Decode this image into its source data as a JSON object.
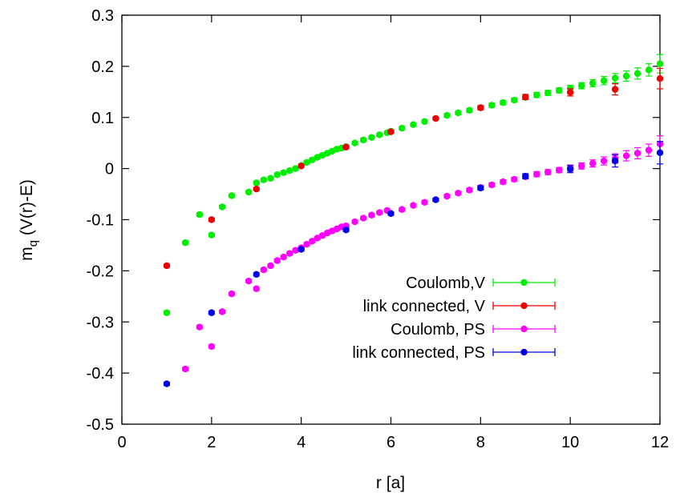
{
  "chart_data": {
    "type": "scatter",
    "title": "",
    "xlabel": "r [a]",
    "ylabel_main": "m",
    "ylabel_sub": "q",
    "ylabel_rest": " (V(r)-E)",
    "xlim": [
      0,
      12
    ],
    "ylim": [
      -0.5,
      0.3
    ],
    "xticks": [
      0,
      2,
      4,
      6,
      8,
      10,
      12
    ],
    "xtick_labels": [
      "0",
      "2",
      "4",
      "6",
      "8",
      "10",
      "12"
    ],
    "yticks": [
      -0.5,
      -0.4,
      -0.3,
      -0.2,
      -0.1,
      0,
      0.1,
      0.2,
      0.3
    ],
    "ytick_labels": [
      "-0.5",
      "-0.4",
      "-0.3",
      "-0.2",
      "-0.1",
      "0",
      "0.1",
      "0.2",
      "0.3"
    ],
    "grid": false,
    "legend_position": "center-right",
    "series": [
      {
        "name": "Coulomb,V",
        "color": "#00ee00",
        "marker": "circle",
        "x": [
          1.0,
          1.414,
          1.732,
          2.0,
          2.236,
          2.449,
          2.828,
          3.0,
          3.162,
          3.317,
          3.464,
          3.606,
          3.742,
          3.873,
          4.0,
          4.123,
          4.243,
          4.359,
          4.472,
          4.583,
          4.69,
          4.796,
          4.899,
          5.0,
          5.196,
          5.385,
          5.568,
          5.745,
          5.916,
          6.0,
          6.245,
          6.5,
          6.75,
          7.0,
          7.25,
          7.5,
          7.75,
          8.0,
          8.25,
          8.5,
          8.75,
          9.0,
          9.25,
          9.5,
          9.75,
          10.0,
          10.25,
          10.5,
          10.75,
          11.0,
          11.25,
          11.5,
          11.75,
          12.0
        ],
        "y": [
          -0.282,
          -0.145,
          -0.09,
          -0.13,
          -0.075,
          -0.053,
          -0.046,
          -0.028,
          -0.022,
          -0.019,
          -0.012,
          -0.008,
          -0.004,
          0.0,
          0.006,
          0.012,
          0.017,
          0.022,
          0.026,
          0.03,
          0.034,
          0.038,
          0.04,
          0.043,
          0.05,
          0.056,
          0.061,
          0.066,
          0.07,
          0.073,
          0.079,
          0.086,
          0.092,
          0.098,
          0.104,
          0.109,
          0.114,
          0.119,
          0.124,
          0.129,
          0.134,
          0.139,
          0.144,
          0.148,
          0.153,
          0.157,
          0.162,
          0.167,
          0.172,
          0.177,
          0.181,
          0.186,
          0.193,
          0.205
        ],
        "err": [
          0.003,
          0.003,
          0.003,
          0.003,
          0.003,
          0.003,
          0.003,
          0.003,
          0.003,
          0.003,
          0.003,
          0.003,
          0.003,
          0.003,
          0.003,
          0.003,
          0.003,
          0.003,
          0.003,
          0.003,
          0.003,
          0.003,
          0.003,
          0.003,
          0.003,
          0.003,
          0.003,
          0.003,
          0.003,
          0.003,
          0.003,
          0.003,
          0.003,
          0.003,
          0.003,
          0.003,
          0.004,
          0.004,
          0.004,
          0.004,
          0.004,
          0.004,
          0.005,
          0.005,
          0.005,
          0.006,
          0.006,
          0.007,
          0.008,
          0.009,
          0.01,
          0.011,
          0.012,
          0.018
        ]
      },
      {
        "name": "link connected, V",
        "color": "#ee0000",
        "marker": "circle",
        "x": [
          1,
          2,
          3,
          4,
          5,
          6,
          7,
          8,
          9,
          10,
          11,
          12
        ],
        "y": [
          -0.19,
          -0.1,
          -0.04,
          0.005,
          0.042,
          0.072,
          0.098,
          0.119,
          0.14,
          0.149,
          0.155,
          0.176
        ],
        "err": [
          0.003,
          0.003,
          0.003,
          0.003,
          0.003,
          0.003,
          0.003,
          0.004,
          0.005,
          0.007,
          0.011,
          0.02
        ]
      },
      {
        "name": "Coulomb, PS",
        "color": "#ff00ff",
        "marker": "circle",
        "x": [
          1.414,
          1.732,
          2.0,
          2.236,
          2.449,
          2.828,
          3.0,
          3.162,
          3.317,
          3.464,
          3.606,
          3.742,
          3.873,
          4.0,
          4.123,
          4.243,
          4.359,
          4.472,
          4.583,
          4.69,
          4.796,
          4.899,
          5.0,
          5.196,
          5.385,
          5.568,
          5.745,
          5.916,
          6.0,
          6.245,
          6.5,
          6.75,
          7.0,
          7.25,
          7.5,
          7.75,
          8.0,
          8.25,
          8.5,
          8.75,
          9.0,
          9.25,
          9.5,
          9.75,
          10.0,
          10.25,
          10.5,
          10.75,
          11.0,
          11.25,
          11.5,
          11.75,
          12.0
        ],
        "y": [
          -0.392,
          -0.31,
          -0.348,
          -0.28,
          -0.245,
          -0.22,
          -0.235,
          -0.198,
          -0.19,
          -0.18,
          -0.173,
          -0.166,
          -0.16,
          -0.155,
          -0.148,
          -0.142,
          -0.136,
          -0.131,
          -0.126,
          -0.122,
          -0.118,
          -0.114,
          -0.112,
          -0.104,
          -0.097,
          -0.091,
          -0.086,
          -0.082,
          -0.088,
          -0.08,
          -0.072,
          -0.066,
          -0.061,
          -0.054,
          -0.048,
          -0.042,
          -0.037,
          -0.032,
          -0.026,
          -0.021,
          -0.016,
          -0.011,
          -0.007,
          -0.003,
          0.001,
          0.005,
          0.01,
          0.015,
          0.02,
          0.025,
          0.03,
          0.036,
          0.048
        ],
        "err": [
          0.003,
          0.003,
          0.003,
          0.003,
          0.003,
          0.003,
          0.003,
          0.003,
          0.003,
          0.003,
          0.003,
          0.003,
          0.003,
          0.003,
          0.003,
          0.003,
          0.003,
          0.003,
          0.003,
          0.003,
          0.003,
          0.003,
          0.003,
          0.003,
          0.003,
          0.003,
          0.003,
          0.003,
          0.003,
          0.003,
          0.003,
          0.003,
          0.003,
          0.003,
          0.003,
          0.004,
          0.004,
          0.004,
          0.004,
          0.004,
          0.004,
          0.005,
          0.005,
          0.005,
          0.006,
          0.006,
          0.007,
          0.008,
          0.009,
          0.01,
          0.011,
          0.012,
          0.016
        ]
      },
      {
        "name": "link connected, PS",
        "color": "#0000ee",
        "marker": "circle",
        "x": [
          1,
          2,
          3,
          4,
          5,
          6,
          7,
          8,
          9,
          10,
          11,
          12
        ],
        "y": [
          -0.421,
          -0.282,
          -0.207,
          -0.158,
          -0.12,
          -0.088,
          -0.061,
          -0.038,
          -0.015,
          -0.001,
          0.015,
          0.031
        ],
        "err": [
          0.003,
          0.003,
          0.003,
          0.003,
          0.003,
          0.003,
          0.003,
          0.004,
          0.005,
          0.007,
          0.012,
          0.022
        ]
      }
    ]
  }
}
